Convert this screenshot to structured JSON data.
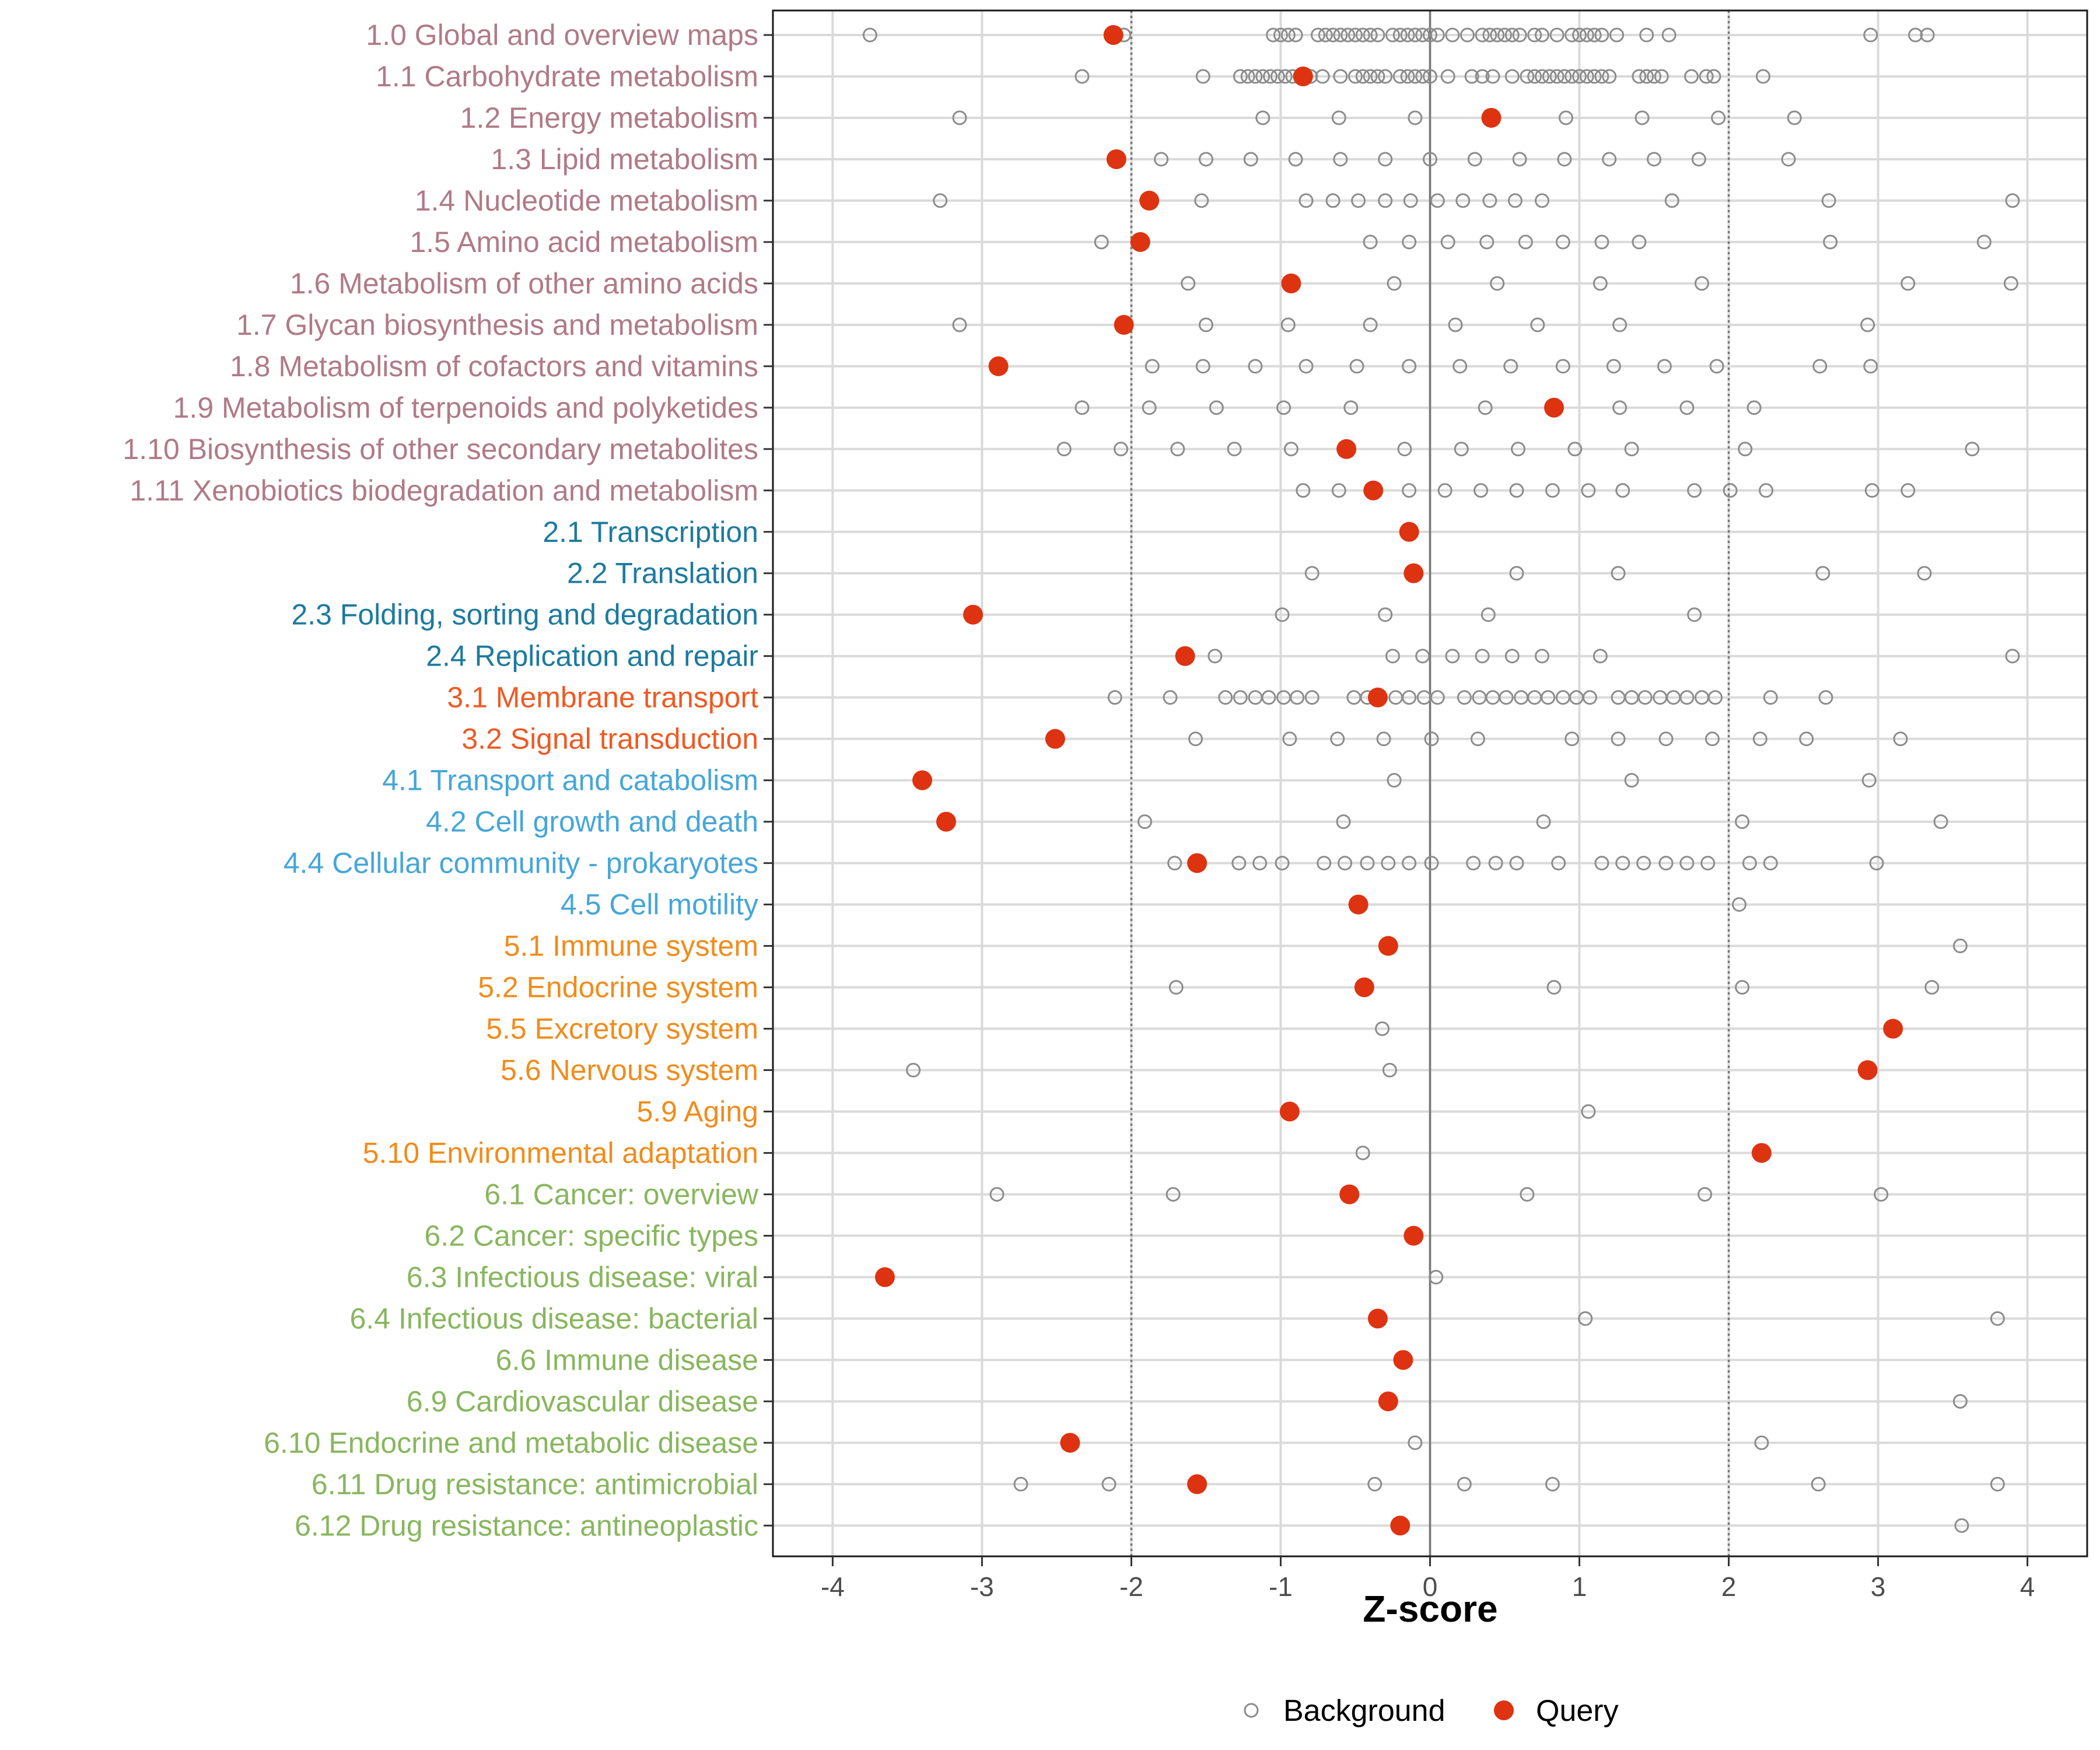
{
  "chart_data": {
    "type": "scatter",
    "title": "",
    "xlabel": "Z-score",
    "ylabel": "",
    "xlim": [
      -4.4,
      4.4
    ],
    "xticks": [
      -4,
      -3,
      -2,
      -1,
      0,
      1,
      2,
      3,
      4
    ],
    "tick_labels": [
      "-4",
      "-3",
      "-2",
      "-1",
      "0",
      "1",
      "2",
      "3",
      "4"
    ],
    "reference_lines": [
      -2,
      0,
      2
    ],
    "legend": {
      "position": "bottom",
      "entries": [
        {
          "name": "Background",
          "marker": "open-circle",
          "color": "#8c8c8c"
        },
        {
          "name": "Query",
          "marker": "filled-circle",
          "color": "#dd3311"
        }
      ]
    },
    "group_colors": {
      "1": "#b07a88",
      "2": "#1d7a9e",
      "3": "#ee5a24",
      "4": "#46a6d8",
      "5": "#f08c1c",
      "6": "#88b65e"
    },
    "categories": [
      {
        "label": "1.0 Global and overview maps",
        "group": "1",
        "query": -2.12,
        "background": [
          -3.75,
          -2.05,
          -1.05,
          -1.0,
          -0.95,
          -0.9,
          -0.75,
          -0.7,
          -0.65,
          -0.6,
          -0.55,
          -0.5,
          -0.45,
          -0.4,
          -0.35,
          -0.25,
          -0.2,
          -0.15,
          -0.1,
          -0.05,
          0.0,
          0.05,
          0.15,
          0.25,
          0.35,
          0.4,
          0.45,
          0.5,
          0.55,
          0.6,
          0.7,
          0.75,
          0.85,
          0.95,
          1.0,
          1.05,
          1.1,
          1.15,
          1.25,
          1.45,
          1.6,
          2.95,
          3.25,
          3.33
        ]
      },
      {
        "label": "1.1 Carbohydrate metabolism",
        "group": "1",
        "query": -0.85,
        "background": [
          -2.33,
          -1.52,
          -1.27,
          -1.22,
          -1.17,
          -1.12,
          -1.07,
          -1.02,
          -0.97,
          -0.92,
          -0.87,
          -0.8,
          -0.72,
          -0.6,
          -0.5,
          -0.45,
          -0.4,
          -0.35,
          -0.3,
          -0.2,
          -0.15,
          -0.1,
          -0.05,
          0.0,
          0.12,
          0.28,
          0.35,
          0.42,
          0.55,
          0.65,
          0.7,
          0.75,
          0.8,
          0.85,
          0.9,
          0.95,
          1.0,
          1.05,
          1.1,
          1.15,
          1.2,
          1.4,
          1.45,
          1.5,
          1.55,
          1.75,
          1.85,
          1.9,
          2.23
        ]
      },
      {
        "label": "1.2 Energy metabolism",
        "group": "1",
        "query": 0.41,
        "background": [
          -3.15,
          -1.12,
          -0.61,
          -0.1,
          0.91,
          1.42,
          1.93,
          2.44
        ]
      },
      {
        "label": "1.3 Lipid metabolism",
        "group": "1",
        "query": -2.1,
        "background": [
          -1.8,
          -1.5,
          -1.2,
          -0.9,
          -0.6,
          -0.3,
          0.0,
          0.3,
          0.6,
          0.9,
          1.2,
          1.5,
          1.8,
          2.4
        ]
      },
      {
        "label": "1.4 Nucleotide metabolism",
        "group": "1",
        "query": -1.88,
        "background": [
          -3.28,
          -1.53,
          -0.83,
          -0.65,
          -0.48,
          -0.3,
          -0.13,
          0.05,
          0.22,
          0.4,
          0.57,
          0.75,
          1.62,
          2.67,
          3.9
        ]
      },
      {
        "label": "1.5 Amino acid metabolism",
        "group": "1",
        "query": -1.94,
        "background": [
          -2.2,
          -0.4,
          -0.14,
          0.12,
          0.38,
          0.64,
          0.89,
          1.15,
          1.4,
          2.68,
          3.71
        ]
      },
      {
        "label": "1.6 Metabolism of other amino acids",
        "group": "1",
        "query": -0.93,
        "background": [
          -1.62,
          -0.24,
          0.45,
          1.14,
          1.82,
          3.2,
          3.89
        ]
      },
      {
        "label": "1.7 Glycan biosynthesis and metabolism",
        "group": "1",
        "query": -2.05,
        "background": [
          -3.15,
          -1.5,
          -0.95,
          -0.4,
          0.17,
          0.72,
          1.27,
          2.93
        ]
      },
      {
        "label": "1.8 Metabolism of cofactors and vitamins",
        "group": "1",
        "query": -2.89,
        "background": [
          -1.86,
          -1.52,
          -1.17,
          -0.83,
          -0.49,
          -0.14,
          0.2,
          0.54,
          0.89,
          1.23,
          1.57,
          1.92,
          2.61,
          2.95
        ]
      },
      {
        "label": "1.9 Metabolism of terpenoids and polyketides",
        "group": "1",
        "query": 0.83,
        "background": [
          -2.33,
          -1.88,
          -1.43,
          -0.98,
          -0.53,
          0.37,
          1.27,
          1.72,
          2.17
        ]
      },
      {
        "label": "1.10 Biosynthesis of other secondary metabolites",
        "group": "1",
        "query": -0.56,
        "background": [
          -2.45,
          -2.07,
          -1.69,
          -1.31,
          -0.93,
          -0.17,
          0.21,
          0.59,
          0.97,
          1.35,
          2.11,
          3.63
        ]
      },
      {
        "label": "1.11 Xenobiotics biodegradation and metabolism",
        "group": "1",
        "query": -0.38,
        "background": [
          -0.85,
          -0.61,
          -0.14,
          0.1,
          0.34,
          0.58,
          0.82,
          1.06,
          1.29,
          1.77,
          2.01,
          2.25,
          2.96,
          3.2
        ]
      },
      {
        "label": "2.1 Transcription",
        "group": "2",
        "query": -0.14,
        "background": []
      },
      {
        "label": "2.2 Translation",
        "group": "2",
        "query": -0.11,
        "background": [
          -0.79,
          0.58,
          1.26,
          2.63,
          3.31
        ]
      },
      {
        "label": "2.3 Folding, sorting and degradation",
        "group": "2",
        "query": -3.06,
        "background": [
          -0.99,
          -0.3,
          0.39,
          1.77
        ]
      },
      {
        "label": "2.4 Replication and repair",
        "group": "2",
        "query": -1.64,
        "background": [
          -1.44,
          -0.25,
          -0.05,
          0.15,
          0.35,
          0.55,
          0.75,
          1.14,
          3.9
        ]
      },
      {
        "label": "3.1 Membrane transport",
        "group": "3",
        "query": -0.35,
        "background": [
          -2.11,
          -1.74,
          -1.37,
          -1.27,
          -1.17,
          -1.08,
          -0.98,
          -0.89,
          -0.79,
          -0.51,
          -0.42,
          -0.23,
          -0.14,
          -0.04,
          0.05,
          0.23,
          0.33,
          0.42,
          0.51,
          0.61,
          0.7,
          0.79,
          0.89,
          0.98,
          1.07,
          1.26,
          1.35,
          1.44,
          1.54,
          1.63,
          1.72,
          1.82,
          1.91,
          2.28,
          2.65
        ]
      },
      {
        "label": "3.2 Signal transduction",
        "group": "3",
        "query": -2.51,
        "background": [
          -1.57,
          -0.94,
          -0.62,
          -0.31,
          0.01,
          0.32,
          0.95,
          1.26,
          1.58,
          1.89,
          2.21,
          2.52,
          3.15
        ]
      },
      {
        "label": "4.1 Transport and catabolism",
        "group": "4",
        "query": -3.4,
        "background": [
          -0.24,
          1.35,
          2.94
        ]
      },
      {
        "label": "4.2 Cell growth and death",
        "group": "4",
        "query": -3.24,
        "background": [
          -1.91,
          -0.58,
          0.76,
          2.09,
          3.42
        ]
      },
      {
        "label": "4.4 Cellular community - prokaryotes",
        "group": "4",
        "query": -1.56,
        "background": [
          -1.71,
          -1.28,
          -1.14,
          -0.99,
          -0.71,
          -0.57,
          -0.42,
          -0.28,
          -0.14,
          0.01,
          0.29,
          0.44,
          0.58,
          0.86,
          1.15,
          1.29,
          1.43,
          1.58,
          1.72,
          1.86,
          2.14,
          2.28,
          2.99
        ]
      },
      {
        "label": "4.5 Cell motility",
        "group": "4",
        "query": -0.48,
        "background": [
          2.07
        ]
      },
      {
        "label": "5.1 Immune system",
        "group": "5",
        "query": -0.28,
        "background": [
          3.55
        ]
      },
      {
        "label": "5.2 Endocrine system",
        "group": "5",
        "query": -0.44,
        "background": [
          -1.7,
          0.83,
          2.09,
          3.36
        ]
      },
      {
        "label": "5.5 Excretory system",
        "group": "5",
        "query": 3.1,
        "background": [
          -0.32
        ]
      },
      {
        "label": "5.6 Nervous system",
        "group": "5",
        "query": 2.93,
        "background": [
          -3.46,
          -0.27
        ]
      },
      {
        "label": "5.9 Aging",
        "group": "5",
        "query": -0.94,
        "background": [
          1.06
        ]
      },
      {
        "label": "5.10 Environmental adaptation",
        "group": "5",
        "query": 2.22,
        "background": [
          -0.45
        ]
      },
      {
        "label": "6.1 Cancer: overview",
        "group": "6",
        "query": -0.54,
        "background": [
          -2.9,
          -1.72,
          0.65,
          1.84,
          3.02
        ]
      },
      {
        "label": "6.2 Cancer: specific types",
        "group": "6",
        "query": -0.11,
        "background": []
      },
      {
        "label": "6.3 Infectious disease: viral",
        "group": "6",
        "query": -3.65,
        "background": [
          0.04
        ]
      },
      {
        "label": "6.4 Infectious disease: bacterial",
        "group": "6",
        "query": -0.35,
        "background": [
          1.04,
          3.8
        ]
      },
      {
        "label": "6.6 Immune disease",
        "group": "6",
        "query": -0.18,
        "background": []
      },
      {
        "label": "6.9 Cardiovascular disease",
        "group": "6",
        "query": -0.28,
        "background": [
          3.55
        ]
      },
      {
        "label": "6.10 Endocrine and metabolic disease",
        "group": "6",
        "query": -2.41,
        "background": [
          -0.1,
          2.22
        ]
      },
      {
        "label": "6.11 Drug resistance: antimicrobial",
        "group": "6",
        "query": -1.56,
        "background": [
          -2.74,
          -2.15,
          -0.37,
          0.23,
          0.82,
          2.6,
          3.8
        ]
      },
      {
        "label": "6.12 Drug resistance: antineoplastic",
        "group": "6",
        "query": -0.2,
        "background": [
          3.56
        ]
      }
    ]
  }
}
